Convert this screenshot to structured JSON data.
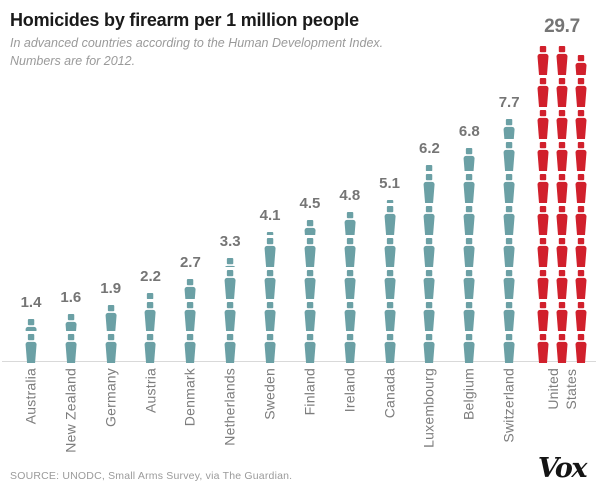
{
  "header": {
    "title": "Homicides by firearm per 1 million people",
    "subtitle_line1": "In advanced countries according to the Human Development Index.",
    "subtitle_line2": "Numbers are for 2012."
  },
  "footer": {
    "source": "SOURCE: UNODC, Small Arms Survey, via The Guardian.",
    "logo": "Vox"
  },
  "colors": {
    "default_bar": "#6ba0a5",
    "highlight_bar": "#d1202c",
    "value_label": "#757575",
    "axis_label": "#7d7d7d",
    "baseline": "#d9d9d9",
    "title": "#1a1a1a",
    "subtitle": "#9a9a9a"
  },
  "chart_data": {
    "type": "bar",
    "style": "pictogram",
    "icon": "person",
    "icon_unit": 1,
    "title": "Homicides by firearm per 1 million people",
    "subtitle": "In advanced countries according to the Human Development Index. Numbers are for 2012.",
    "categories": [
      "Australia",
      "New Zealand",
      "Germany",
      "Austria",
      "Denmark",
      "Netherlands",
      "Sweden",
      "Finland",
      "Ireland",
      "Canada",
      "Luxembourg",
      "Belgium",
      "Switzerland",
      "United States"
    ],
    "values": [
      1.4,
      1.6,
      1.9,
      2.2,
      2.7,
      3.3,
      4.1,
      4.5,
      4.8,
      5.1,
      6.2,
      6.8,
      7.7,
      29.7
    ],
    "value_labels": [
      "1.4",
      "1.6",
      "1.9",
      "2.2",
      "2.7",
      "3.3",
      "4.1",
      "4.5",
      "4.8",
      "5.1",
      "6.2",
      "6.8",
      "7.7",
      "29.7"
    ],
    "bar_colors": [
      "#6ba0a5",
      "#6ba0a5",
      "#6ba0a5",
      "#6ba0a5",
      "#6ba0a5",
      "#6ba0a5",
      "#6ba0a5",
      "#6ba0a5",
      "#6ba0a5",
      "#6ba0a5",
      "#6ba0a5",
      "#6ba0a5",
      "#6ba0a5",
      "#d1202c"
    ],
    "sub_columns": [
      1,
      1,
      1,
      1,
      1,
      1,
      1,
      1,
      1,
      1,
      1,
      1,
      1,
      3
    ],
    "label_lines": [
      [
        "Australia"
      ],
      [
        "New Zealand"
      ],
      [
        "Germany"
      ],
      [
        "Austria"
      ],
      [
        "Denmark"
      ],
      [
        "Netherlands"
      ],
      [
        "Sweden"
      ],
      [
        "Finland"
      ],
      [
        "Ireland"
      ],
      [
        "Canada"
      ],
      [
        "Luxembourg"
      ],
      [
        "Belgium"
      ],
      [
        "Switzerland"
      ],
      [
        "United",
        "States"
      ]
    ],
    "highlight_category": "United States",
    "xlabel": "",
    "ylabel": "",
    "ylim": [
      0,
      30
    ],
    "grid": "off",
    "legend": "none"
  }
}
